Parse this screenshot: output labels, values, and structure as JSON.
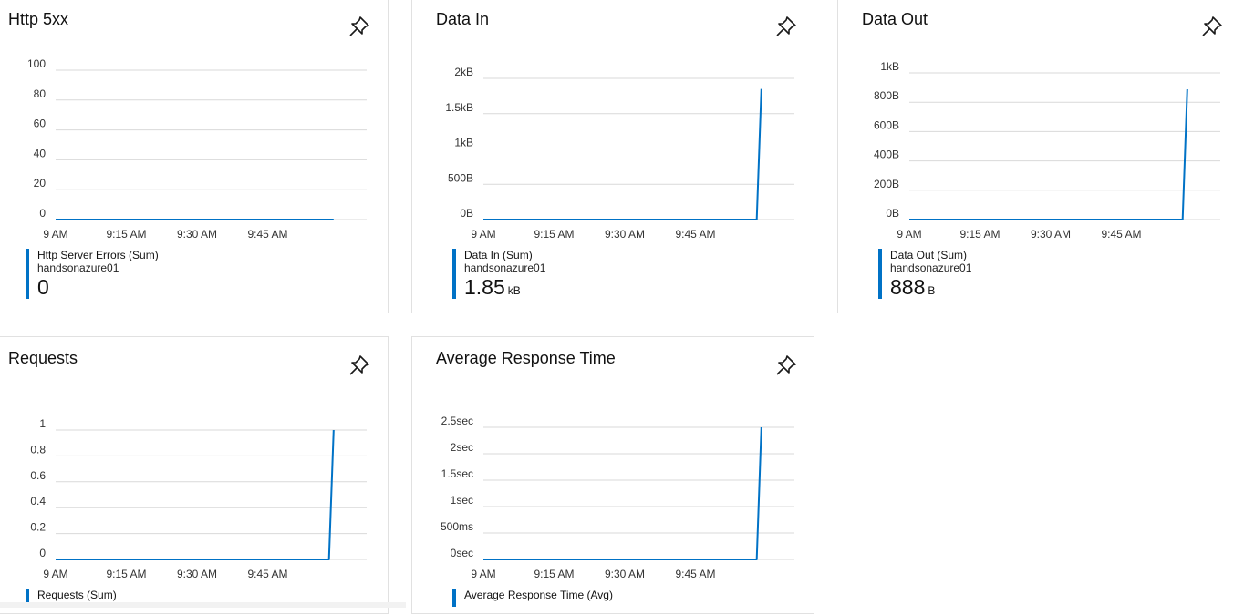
{
  "tiles": [
    {
      "title": "Http 5xx",
      "legend": {
        "name": "Http Server Errors (Sum)",
        "resource": "handsonazure01",
        "value": "0",
        "unit": ""
      }
    },
    {
      "title": "Data In",
      "legend": {
        "name": "Data In (Sum)",
        "resource": "handsonazure01",
        "value": "1.85",
        "unit": "kB"
      }
    },
    {
      "title": "Data Out",
      "legend": {
        "name": "Data Out (Sum)",
        "resource": "handsonazure01",
        "value": "888",
        "unit": "B"
      }
    },
    {
      "title": "Requests",
      "legend": {
        "name": "Requests (Sum)",
        "resource": "",
        "value": "",
        "unit": ""
      }
    },
    {
      "title": "Average Response Time",
      "legend": {
        "name": "Average Response Time (Avg)",
        "resource": "",
        "value": "",
        "unit": ""
      }
    }
  ],
  "icons": {
    "pin": "pin-icon"
  },
  "colors": {
    "series": "#0072c6",
    "grid": "#d9d9d9"
  },
  "chart_data": [
    {
      "type": "line",
      "title": "Http 5xx",
      "x_ticks": [
        "9 AM",
        "9:15 AM",
        "9:30 AM",
        "9:45 AM"
      ],
      "y_ticks": [
        "100",
        "80",
        "60",
        "40",
        "20",
        "0"
      ],
      "ylim": [
        0,
        100
      ],
      "series": [
        {
          "name": "Http Server Errors (Sum)",
          "x": [
            "9:00 AM",
            "9:59 AM"
          ],
          "y": [
            0,
            0
          ]
        }
      ],
      "grid": true
    },
    {
      "type": "line",
      "title": "Data In",
      "x_ticks": [
        "9 AM",
        "9:15 AM",
        "9:30 AM",
        "9:45 AM"
      ],
      "y_ticks": [
        "2kB",
        "1.5kB",
        "1kB",
        "500B",
        "0B"
      ],
      "ylim": [
        0,
        2000
      ],
      "series": [
        {
          "name": "Data In (Sum)",
          "x": [
            "9:00 AM",
            "9:58 AM",
            "9:59 AM"
          ],
          "y": [
            0,
            0,
            1850
          ]
        }
      ],
      "grid": true
    },
    {
      "type": "line",
      "title": "Data Out",
      "x_ticks": [
        "9 AM",
        "9:15 AM",
        "9:30 AM",
        "9:45 AM"
      ],
      "y_ticks": [
        "1kB",
        "800B",
        "600B",
        "400B",
        "200B",
        "0B"
      ],
      "ylim": [
        0,
        1000
      ],
      "series": [
        {
          "name": "Data Out (Sum)",
          "x": [
            "9:00 AM",
            "9:58 AM",
            "9:59 AM"
          ],
          "y": [
            0,
            0,
            888
          ]
        }
      ],
      "grid": true
    },
    {
      "type": "line",
      "title": "Requests",
      "x_ticks": [
        "9 AM",
        "9:15 AM",
        "9:30 AM",
        "9:45 AM"
      ],
      "y_ticks": [
        "1",
        "0.8",
        "0.6",
        "0.4",
        "0.2",
        "0"
      ],
      "ylim": [
        0,
        1
      ],
      "series": [
        {
          "name": "Requests (Sum)",
          "x": [
            "9:00 AM",
            "9:58 AM",
            "9:59 AM"
          ],
          "y": [
            0,
            0,
            1
          ]
        }
      ],
      "grid": true
    },
    {
      "type": "line",
      "title": "Average Response Time",
      "x_ticks": [
        "9 AM",
        "9:15 AM",
        "9:30 AM",
        "9:45 AM"
      ],
      "y_ticks": [
        "2.5sec",
        "2sec",
        "1.5sec",
        "1sec",
        "500ms",
        "0sec"
      ],
      "ylim": [
        0,
        2.5
      ],
      "series": [
        {
          "name": "Average Response Time (Avg)",
          "x": [
            "9:00 AM",
            "9:58 AM",
            "9:59 AM"
          ],
          "y": [
            0,
            0,
            2.5
          ]
        }
      ],
      "grid": true
    }
  ]
}
